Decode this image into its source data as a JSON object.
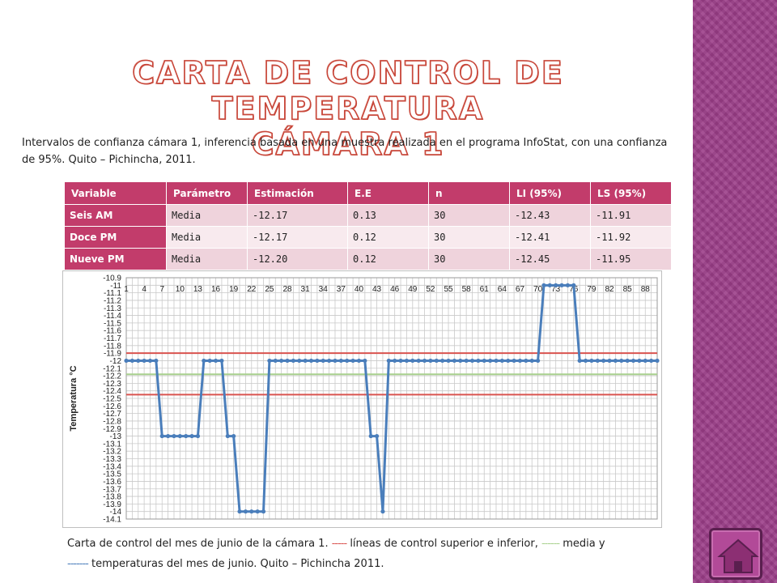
{
  "slide": {
    "title_line1": "CARTA DE CONTROL DE TEMPERATURA",
    "title_line2": "CÁMARA 1",
    "intro": "Intervalos de confianza cámara 1, inferencia basada en una muestra realizada en el programa InfoStat, con una confianza de 95%. Quito – Pichincha, 2011.",
    "band_color": "#9b3d88",
    "accent_color": "#c23c6b"
  },
  "table": {
    "headers": [
      "Variable",
      "Parámetro",
      "Estimación",
      "E.E",
      "n",
      "LI (95%)",
      "LS (95%)"
    ],
    "rows": [
      [
        "Seis AM",
        "Media",
        "-12.17",
        "0.13",
        "30",
        "-12.43",
        "-11.91"
      ],
      [
        "Doce PM",
        "Media",
        "-12.17",
        "0.12",
        "30",
        "-12.41",
        "-11.92"
      ],
      [
        "Nueve PM",
        "Media",
        "-12.20",
        "0.12",
        "30",
        "-12.45",
        "-11.95"
      ]
    ]
  },
  "caption": {
    "dash_red": "-----",
    "part1": " líneas de control superior e inferior, ",
    "dash_green": "------",
    "part2": " media y",
    "dash_blue": "-------",
    "part3": " temperaturas del mes de junio. Quito – Pichincha 2011.",
    "prefix": "Carta de control del mes de junio de la cámara 1. "
  },
  "chart_data": {
    "type": "line",
    "ylabel": "Temperatura °C",
    "ylim": [
      -14.1,
      -10.9
    ],
    "ytick_step": 0.1,
    "xlim": [
      1,
      90
    ],
    "x_tick_labels": [
      1,
      4,
      7,
      10,
      13,
      16,
      19,
      22,
      25,
      28,
      31,
      34,
      37,
      40,
      43,
      46,
      49,
      52,
      55,
      58,
      61,
      64,
      67,
      70,
      73,
      76,
      79,
      82,
      85,
      88
    ],
    "grid": true,
    "control_lines": [
      {
        "role": "upper",
        "value": -11.9,
        "color": "#d9534f"
      },
      {
        "role": "mean",
        "value": -12.18,
        "color": "#a9d18e"
      },
      {
        "role": "lower",
        "value": -12.45,
        "color": "#d9534f"
      }
    ],
    "series_color": "#4a7ebb",
    "values": [
      -12,
      -12,
      -12,
      -12,
      -12,
      -12,
      -13,
      -13,
      -13,
      -13,
      -13,
      -13,
      -13,
      -12,
      -12,
      -12,
      -12,
      -13,
      -13,
      -14,
      -14,
      -14,
      -14,
      -14,
      -12,
      -12,
      -12,
      -12,
      -12,
      -12,
      -12,
      -12,
      -12,
      -12,
      -12,
      -12,
      -12,
      -12,
      -12,
      -12,
      -12,
      -13,
      -13,
      -14,
      -12,
      -12,
      -12,
      -12,
      -12,
      -12,
      -12,
      -12,
      -12,
      -12,
      -12,
      -12,
      -12,
      -12,
      -12,
      -12,
      -12,
      -12,
      -12,
      -12,
      -12,
      -12,
      -12,
      -12,
      -12,
      -12,
      -11,
      -11,
      -11,
      -11,
      -11,
      -11,
      -12,
      -12,
      -12,
      -12,
      -12,
      -12,
      -12,
      -12,
      -12,
      -12,
      -12,
      -12,
      -12,
      -12
    ]
  }
}
